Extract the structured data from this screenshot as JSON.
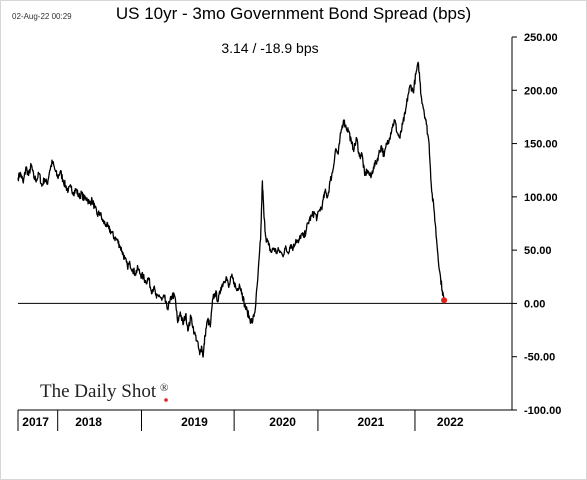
{
  "timestamp": "02-Aug-22 00:29",
  "brand": {
    "name": "The Daily Shot",
    "mark": "®"
  },
  "colors": {
    "line": "#000000",
    "zero_line": "#000000",
    "last_point": "#e0201b",
    "axis": "#000000"
  },
  "chart_data": {
    "type": "line",
    "title": "US 10yr - 3mo Government Bond Spread (bps)",
    "subtitle": "3.14  /  -18.9 bps",
    "xlabel": "",
    "ylabel": "",
    "ylim": [
      -100,
      250
    ],
    "xlim": [
      2017.0,
      2022.6
    ],
    "y_ticks": [
      "250.00",
      "200.00",
      "150.00",
      "100.00",
      "50.00",
      "0.00",
      "-50.00",
      "-100.00"
    ],
    "y_tick_values": [
      250,
      200,
      150,
      100,
      50,
      0,
      -50,
      -100
    ],
    "x_year_labels": [
      "2017",
      "2018",
      "2019",
      "2020",
      "2021",
      "2022"
    ],
    "x_year_centers": [
      2017.2,
      2017.8,
      2019.0,
      2020.0,
      2021.0,
      2021.9
    ],
    "x_separators": [
      2017.45,
      2018.4,
      2019.45,
      2020.4,
      2021.5
    ],
    "grid": false,
    "legend": "none",
    "series": [
      {
        "values": [
          [
            2017.0,
            118
          ],
          [
            2017.03,
            122
          ],
          [
            2017.06,
            113
          ],
          [
            2017.09,
            128
          ],
          [
            2017.12,
            120
          ],
          [
            2017.15,
            130
          ],
          [
            2017.18,
            118
          ],
          [
            2017.21,
            116
          ],
          [
            2017.24,
            122
          ],
          [
            2017.27,
            110
          ],
          [
            2017.3,
            117
          ],
          [
            2017.33,
            112
          ],
          [
            2017.36,
            125
          ],
          [
            2017.39,
            133
          ],
          [
            2017.42,
            125
          ],
          [
            2017.45,
            118
          ],
          [
            2017.48,
            124
          ],
          [
            2017.51,
            116
          ],
          [
            2017.54,
            110
          ],
          [
            2017.57,
            106
          ],
          [
            2017.6,
            109
          ],
          [
            2017.63,
            104
          ],
          [
            2017.66,
            107
          ],
          [
            2017.69,
            100
          ],
          [
            2017.72,
            103
          ],
          [
            2017.75,
            98
          ],
          [
            2017.78,
            99
          ],
          [
            2017.81,
            94
          ],
          [
            2017.84,
            97
          ],
          [
            2017.87,
            90
          ],
          [
            2017.9,
            83
          ],
          [
            2017.93,
            85
          ],
          [
            2017.96,
            77
          ],
          [
            2018.0,
            74
          ],
          [
            2018.03,
            70
          ],
          [
            2018.06,
            67
          ],
          [
            2018.09,
            62
          ],
          [
            2018.12,
            60
          ],
          [
            2018.15,
            55
          ],
          [
            2018.18,
            49
          ],
          [
            2018.21,
            42
          ],
          [
            2018.24,
            35
          ],
          [
            2018.27,
            37
          ],
          [
            2018.3,
            32
          ],
          [
            2018.33,
            28
          ],
          [
            2018.36,
            33
          ],
          [
            2018.39,
            27
          ],
          [
            2018.42,
            25
          ],
          [
            2018.45,
            20
          ],
          [
            2018.48,
            24
          ],
          [
            2018.51,
            12
          ],
          [
            2018.54,
            15
          ],
          [
            2018.57,
            5
          ],
          [
            2018.6,
            8
          ],
          [
            2018.63,
            3
          ],
          [
            2018.66,
            6
          ],
          [
            2018.69,
            -5
          ],
          [
            2018.72,
            1
          ],
          [
            2018.75,
            8
          ],
          [
            2018.78,
            6
          ],
          [
            2018.81,
            -18
          ],
          [
            2018.84,
            -8
          ],
          [
            2018.87,
            -20
          ],
          [
            2018.9,
            -10
          ],
          [
            2018.93,
            -25
          ],
          [
            2018.96,
            -12
          ],
          [
            2019.0,
            -28
          ],
          [
            2019.03,
            -35
          ],
          [
            2019.06,
            -48
          ],
          [
            2019.08,
            -40
          ],
          [
            2019.1,
            -50
          ],
          [
            2019.12,
            -30
          ],
          [
            2019.15,
            -15
          ],
          [
            2019.18,
            -22
          ],
          [
            2019.21,
            5
          ],
          [
            2019.24,
            10
          ],
          [
            2019.27,
            2
          ],
          [
            2019.3,
            15
          ],
          [
            2019.33,
            20
          ],
          [
            2019.36,
            25
          ],
          [
            2019.39,
            15
          ],
          [
            2019.42,
            25
          ],
          [
            2019.45,
            20
          ],
          [
            2019.48,
            12
          ],
          [
            2019.51,
            18
          ],
          [
            2019.54,
            10
          ],
          [
            2019.57,
            -2
          ],
          [
            2019.6,
            -8
          ],
          [
            2019.63,
            -15
          ],
          [
            2019.66,
            -17
          ],
          [
            2019.69,
            -5
          ],
          [
            2019.72,
            25
          ],
          [
            2019.75,
            60
          ],
          [
            2019.77,
            115
          ],
          [
            2019.79,
            80
          ],
          [
            2019.81,
            62
          ],
          [
            2019.84,
            55
          ],
          [
            2019.87,
            48
          ],
          [
            2019.9,
            52
          ],
          [
            2019.93,
            48
          ],
          [
            2019.96,
            50
          ],
          [
            2020.0,
            45
          ],
          [
            2020.03,
            52
          ],
          [
            2020.06,
            48
          ],
          [
            2020.09,
            55
          ],
          [
            2020.12,
            52
          ],
          [
            2020.15,
            60
          ],
          [
            2020.18,
            57
          ],
          [
            2020.21,
            65
          ],
          [
            2020.24,
            62
          ],
          [
            2020.27,
            70
          ],
          [
            2020.3,
            78
          ],
          [
            2020.33,
            82
          ],
          [
            2020.36,
            85
          ],
          [
            2020.39,
            80
          ],
          [
            2020.42,
            88
          ],
          [
            2020.45,
            92
          ],
          [
            2020.48,
            105
          ],
          [
            2020.51,
            100
          ],
          [
            2020.54,
            115
          ],
          [
            2020.57,
            125
          ],
          [
            2020.6,
            145
          ],
          [
            2020.63,
            140
          ],
          [
            2020.66,
            160
          ],
          [
            2020.69,
            172
          ],
          [
            2020.72,
            165
          ],
          [
            2020.75,
            162
          ],
          [
            2020.78,
            150
          ],
          [
            2020.81,
            145
          ],
          [
            2020.84,
            155
          ],
          [
            2020.87,
            138
          ],
          [
            2020.9,
            140
          ],
          [
            2020.93,
            120
          ],
          [
            2020.96,
            125
          ],
          [
            2021.0,
            118
          ],
          [
            2021.03,
            128
          ],
          [
            2021.06,
            132
          ],
          [
            2021.09,
            140
          ],
          [
            2021.12,
            148
          ],
          [
            2021.15,
            138
          ],
          [
            2021.18,
            150
          ],
          [
            2021.21,
            155
          ],
          [
            2021.24,
            165
          ],
          [
            2021.27,
            172
          ],
          [
            2021.3,
            160
          ],
          [
            2021.33,
            155
          ],
          [
            2021.36,
            168
          ],
          [
            2021.39,
            178
          ],
          [
            2021.42,
            195
          ],
          [
            2021.45,
            205
          ],
          [
            2021.48,
            198
          ],
          [
            2021.51,
            215
          ],
          [
            2021.54,
            225
          ],
          [
            2021.57,
            195
          ],
          [
            2021.6,
            182
          ],
          [
            2021.63,
            168
          ],
          [
            2021.66,
            150
          ],
          [
            2021.69,
            105
          ],
          [
            2021.72,
            85
          ],
          [
            2021.75,
            55
          ],
          [
            2021.78,
            30
          ],
          [
            2021.81,
            12
          ],
          [
            2021.83,
            3
          ]
        ]
      }
    ],
    "last_point": [
      2021.83,
      3
    ]
  }
}
